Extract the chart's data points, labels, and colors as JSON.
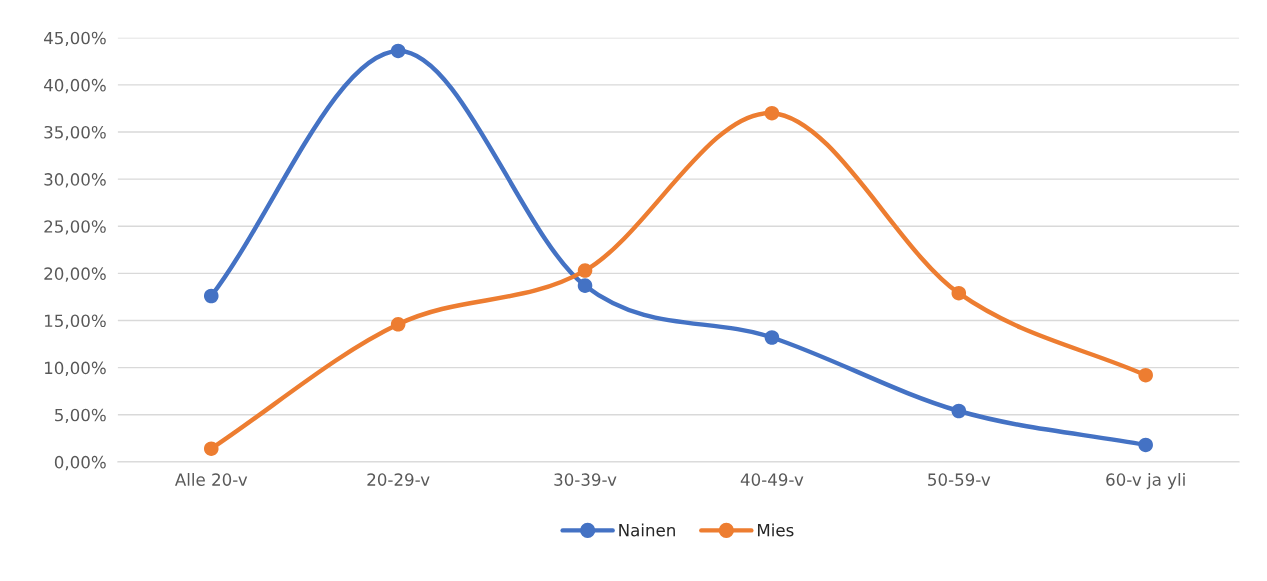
{
  "chart_data": {
    "type": "line",
    "categories": [
      "Alle 20-v",
      "20-29-v",
      "30-39-v",
      "40-49-v",
      "50-59-v",
      "60-v ja yli"
    ],
    "series": [
      {
        "name": "Nainen",
        "color": "#4472c4",
        "values": [
          17.6,
          43.6,
          18.7,
          13.2,
          5.4,
          1.8
        ]
      },
      {
        "name": "Mies",
        "color": "#ed7d31",
        "values": [
          1.4,
          14.6,
          20.3,
          37.0,
          17.9,
          9.2
        ]
      }
    ],
    "ylim": [
      0,
      45
    ],
    "yticks": [
      {
        "value": 0,
        "label": "0,00%"
      },
      {
        "value": 5,
        "label": "5,00%"
      },
      {
        "value": 10,
        "label": "10,00%"
      },
      {
        "value": 15,
        "label": "15,00%"
      },
      {
        "value": 20,
        "label": "20,00%"
      },
      {
        "value": 25,
        "label": "25,00%"
      },
      {
        "value": 30,
        "label": "30,00%"
      },
      {
        "value": 35,
        "label": "35,00%"
      },
      {
        "value": 40,
        "label": "40,00%"
      },
      {
        "value": 45,
        "label": "45,00%"
      }
    ],
    "grid": "y",
    "legend": "bottom",
    "marker": "circle",
    "line_style": "solid"
  }
}
